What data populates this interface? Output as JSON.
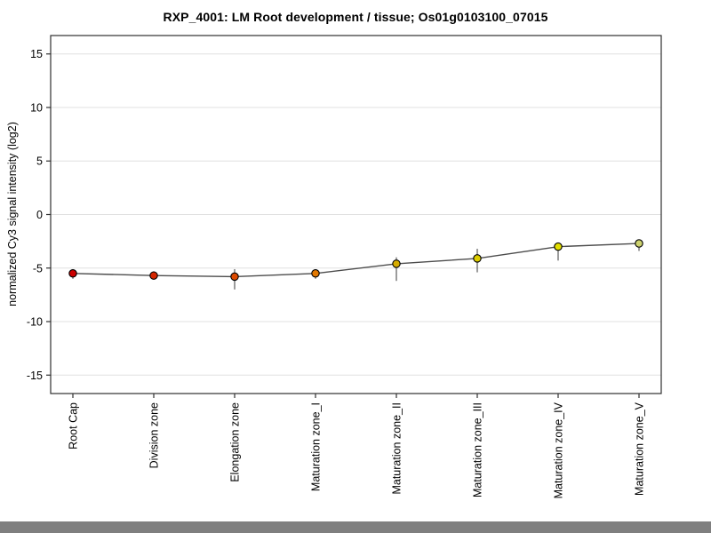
{
  "page": {
    "background": "#FFFFFF",
    "footer_color": "#7F7F7F"
  },
  "chart_data": {
    "type": "line",
    "title": "RXP_4001: LM Root development / tissue; Os01g0103100_07015",
    "xlabel": "",
    "ylabel": "normalized Cy3 signal intensity (log2)",
    "categories": [
      "Root Cap",
      "Division zone",
      "Elongation zone",
      "Maturation zone_I",
      "Maturation zone_II",
      "Maturation zone_III",
      "Maturation zone_IV",
      "Maturation zone_V"
    ],
    "series": [
      {
        "name": "normalized Cy3 signal intensity (log2)",
        "values": [
          -5.5,
          -5.7,
          -5.8,
          -5.5,
          -4.6,
          -4.1,
          -3.0,
          -2.7
        ],
        "error_high": [
          -5.1,
          -5.3,
          -5.1,
          -5.1,
          -4.0,
          -3.2,
          -2.8,
          -2.4
        ],
        "error_low": [
          -6.0,
          -6.0,
          -7.0,
          -6.0,
          -6.2,
          -5.4,
          -4.3,
          -3.4
        ],
        "point_colors": [
          "#CC0000",
          "#D42500",
          "#DC4A00",
          "#E27800",
          "#D6AC00",
          "#DCCC00",
          "#E2DE00",
          "#CDD26E"
        ]
      }
    ],
    "yticks": [
      15,
      10,
      5,
      0,
      -5,
      -10,
      -15
    ],
    "ylim": [
      -16.72,
      16.72
    ],
    "grid": true,
    "legend_position": "none",
    "grid_color": "#E0E0E0",
    "axis_color": "#2F2F2F",
    "line_color": "#4D4D4D",
    "error_bar_color": "#5A5A5A",
    "point_outline_color": "#000000",
    "tick_label_color": "#000000"
  }
}
